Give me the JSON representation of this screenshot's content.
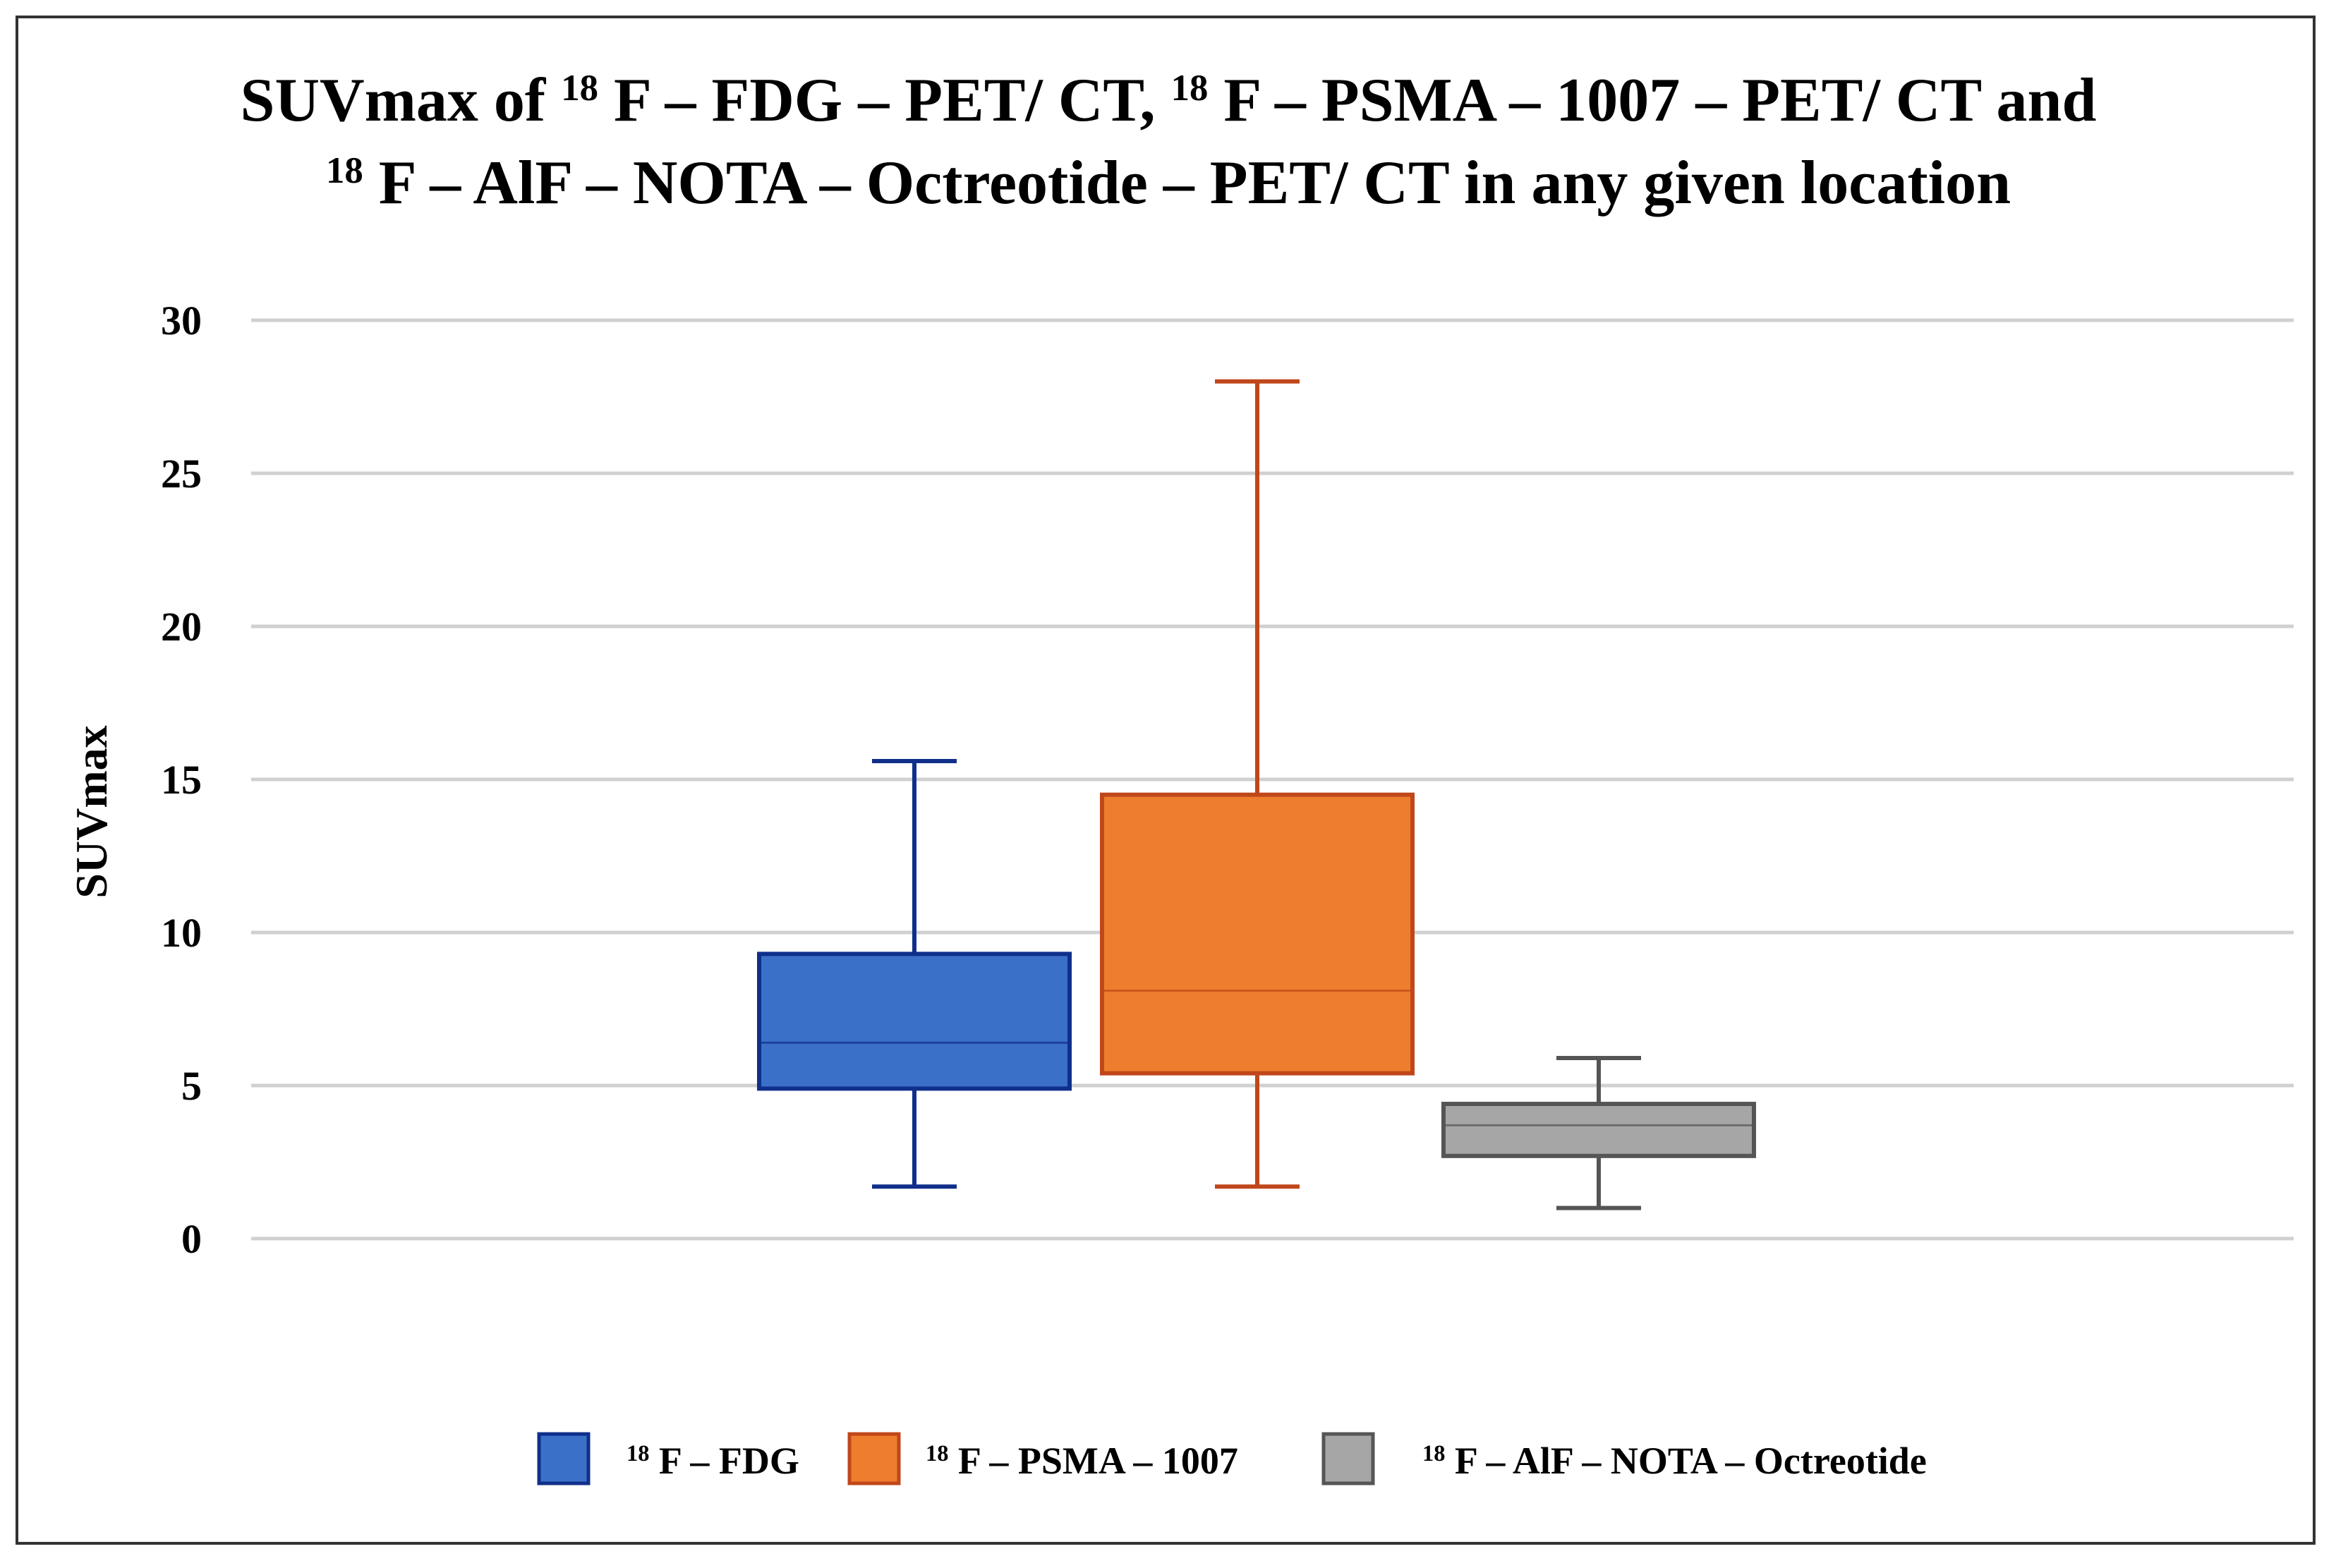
{
  "chart_data": {
    "type": "box",
    "title_lines": [
      [
        {
          "text": "SUVmax of "
        },
        {
          "text": "18",
          "sup": true
        },
        {
          "text": " F – FDG – PET/ CT, "
        },
        {
          "text": "18",
          "sup": true
        },
        {
          "text": " F – PSMA – 1007 – PET/ CT and"
        }
      ],
      [
        {
          "text": "18",
          "sup": true
        },
        {
          "text": " F – AlF – NOTA – Octreotide – PET/ CT in any given location"
        }
      ]
    ],
    "ylabel": "SUVmax",
    "ylim": [
      0,
      30
    ],
    "yticks": [
      0,
      5,
      10,
      15,
      20,
      25,
      30
    ],
    "grid": true,
    "legend_position": "bottom",
    "series": [
      {
        "legend": [
          {
            "text": "18",
            "sup": true
          },
          {
            "text": " F – FDG"
          }
        ],
        "min": 1.7,
        "q1": 4.9,
        "median": 6.4,
        "q3": 9.3,
        "max": 15.6,
        "fill": "#3b70c8",
        "stroke": "#0f2f8a"
      },
      {
        "legend": [
          {
            "text": "18",
            "sup": true
          },
          {
            "text": " F – PSMA – 1007"
          }
        ],
        "min": 1.7,
        "q1": 5.4,
        "median": 8.1,
        "q3": 14.5,
        "max": 28.0,
        "fill": "#ee7d2e",
        "stroke": "#c0471a"
      },
      {
        "legend": [
          {
            "text": "18",
            "sup": true
          },
          {
            "text": " F – AlF – NOTA – Octreotide"
          }
        ],
        "min": 1.0,
        "q1": 2.7,
        "median": 3.7,
        "q3": 4.4,
        "max": 5.9,
        "fill": "#a6a6a6",
        "stroke": "#555555"
      }
    ]
  }
}
